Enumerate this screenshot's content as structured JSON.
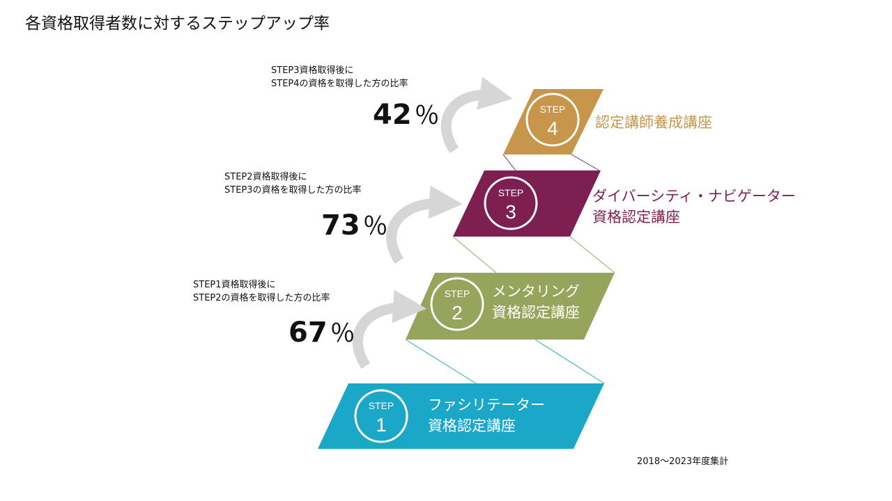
{
  "title": "各資格取得者数に対するステップアップ率",
  "footnote": "2018～2023年度集計",
  "colors": {
    "step1": "#1aa7c8",
    "step2": "#96a45c",
    "step3": "#7e1f52",
    "step4": "#c8964a",
    "arrow": "#d6d6d6"
  },
  "steps": [
    {
      "step_word": "STEP",
      "number": "1",
      "course_lines": [
        "ファシリテーター",
        "資格認定講座"
      ]
    },
    {
      "step_word": "STEP",
      "number": "2",
      "course_lines": [
        "メンタリング",
        "資格認定講座"
      ]
    },
    {
      "step_word": "STEP",
      "number": "3",
      "course_lines": [
        "ダイバーシティ・ナビゲーター",
        "資格認定講座"
      ]
    },
    {
      "step_word": "STEP",
      "number": "4",
      "course_lines": [
        "認定講師養成講座"
      ]
    }
  ],
  "rates": [
    {
      "line1": "STEP1資格取得後に",
      "line2": "STEP2の資格を取得した方の比率",
      "value": "67",
      "unit": "％"
    },
    {
      "line1": "STEP2資格取得後に",
      "line2": "STEP3の資格を取得した方の比率",
      "value": "73",
      "unit": "％"
    },
    {
      "line1": "STEP3資格取得後に",
      "line2": "STEP4の資格を取得した方の比率",
      "value": "42",
      "unit": "％"
    }
  ]
}
